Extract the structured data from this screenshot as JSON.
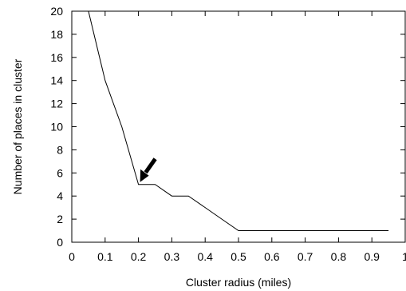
{
  "chart_data": {
    "type": "line",
    "xlabel": "Cluster radius (miles)",
    "ylabel": "Number of places in cluster",
    "xlim": [
      0,
      1
    ],
    "ylim": [
      0,
      20
    ],
    "x_ticks": [
      0,
      0.1,
      0.2,
      0.3,
      0.4,
      0.5,
      0.6,
      0.7,
      0.8,
      0.9,
      1
    ],
    "x_tick_labels": [
      "0",
      "0.1",
      "0.2",
      "0.3",
      "0.4",
      "0.5",
      "0.6",
      "0.7",
      "0.8",
      "0.9",
      "1"
    ],
    "y_ticks": [
      0,
      2,
      4,
      6,
      8,
      10,
      12,
      14,
      16,
      18,
      20
    ],
    "y_tick_labels": [
      "0",
      "2",
      "4",
      "6",
      "8",
      "10",
      "12",
      "14",
      "16",
      "18",
      "20"
    ],
    "grid": false,
    "legend": "none",
    "series": [
      {
        "x": [
          0.05,
          0.1,
          0.15,
          0.2,
          0.25,
          0.3,
          0.35,
          0.4,
          0.45,
          0.5,
          0.55,
          0.6,
          0.65,
          0.7,
          0.75,
          0.8,
          0.85,
          0.9,
          0.95
        ],
        "y": [
          20,
          14,
          10,
          5,
          5,
          4,
          4,
          3,
          2,
          1,
          1,
          1,
          1,
          1,
          1,
          1,
          1,
          1,
          1
        ]
      }
    ],
    "annotations": [
      {
        "type": "arrow",
        "points_to": {
          "x": 0.2,
          "y": 5
        }
      }
    ],
    "colors": {
      "line": "#000000",
      "axis": "#000000"
    }
  }
}
